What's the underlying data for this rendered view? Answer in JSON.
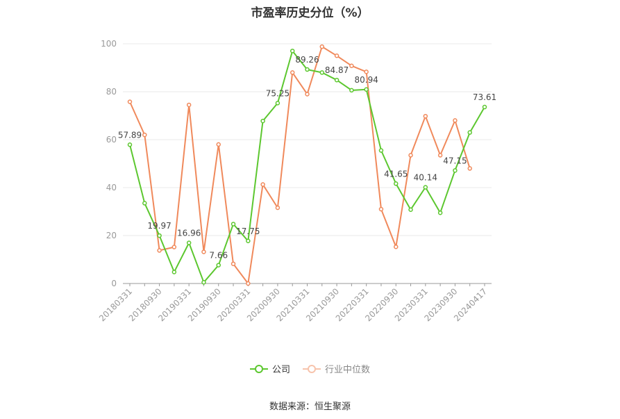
{
  "chart_data": {
    "type": "line",
    "title": "市盈率历史分位（%）",
    "source": "数据来源：恒生聚源",
    "xlabel": "",
    "ylabel": "",
    "ylim": [
      0,
      100
    ],
    "yticks": [
      0,
      20,
      40,
      60,
      80,
      100
    ],
    "grid": true,
    "legend_position": "bottom",
    "x_tick_labels": [
      "20180331",
      "20180930",
      "20190331",
      "20190930",
      "20200331",
      "20200930",
      "20210331",
      "20210930",
      "20220331",
      "20220930",
      "20230331",
      "20230930",
      "20240417"
    ],
    "x": [
      "20180331",
      "20180630",
      "20180930",
      "20181231",
      "20190331",
      "20190630",
      "20190930",
      "20191231",
      "20200331",
      "20200630",
      "20200930",
      "20201231",
      "20210331",
      "20210630",
      "20210930",
      "20211231",
      "20220331",
      "20220630",
      "20220930",
      "20221231",
      "20230331",
      "20230630",
      "20230930",
      "20231231",
      "20240417"
    ],
    "series": [
      {
        "name": "公司",
        "color": "#5cc72f",
        "values": [
          57.89,
          33.5,
          19.97,
          4.8,
          16.96,
          0.5,
          7.66,
          24.8,
          17.75,
          67.8,
          75.25,
          97.0,
          89.26,
          88.0,
          84.87,
          80.6,
          80.94,
          55.5,
          41.65,
          30.8,
          40.14,
          29.5,
          47.15,
          63.0,
          73.61
        ],
        "labels": [
          "57.89",
          "",
          "19.97",
          "",
          "16.96",
          "",
          "7.66",
          "",
          "17.75",
          "",
          "75.25",
          "",
          "89.26",
          "",
          "84.87",
          "",
          "80.94",
          "",
          "41.65",
          "",
          "40.14",
          "",
          "47.15",
          "",
          "73.61"
        ]
      },
      {
        "name": "行业中位数",
        "color": "#f0895b",
        "values": [
          75.8,
          62.0,
          13.8,
          15.2,
          74.5,
          13.2,
          58.0,
          8.2,
          0.0,
          41.3,
          31.6,
          88.0,
          79.0,
          98.8,
          95.0,
          90.8,
          88.3,
          31.0,
          15.3,
          53.5,
          69.8,
          53.5,
          68.0,
          48.0,
          null
        ]
      }
    ]
  }
}
